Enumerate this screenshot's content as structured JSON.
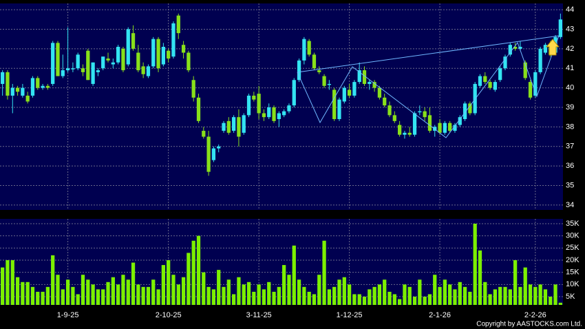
{
  "chart_data": [
    {
      "type": "candlestick",
      "categories": [
        null,
        null,
        null,
        null,
        null,
        null,
        null,
        null,
        null,
        null,
        null,
        null,
        null,
        "1-9-25",
        null,
        null,
        null,
        null,
        null,
        null,
        null,
        null,
        null,
        null,
        null,
        null,
        null,
        null,
        null,
        null,
        null,
        null,
        null,
        "2-10-25",
        null,
        null,
        null,
        null,
        null,
        null,
        null,
        null,
        null,
        null,
        null,
        null,
        null,
        null,
        null,
        null,
        null,
        "3-11-25",
        null,
        null,
        null,
        null,
        null,
        null,
        null,
        null,
        null,
        null,
        null,
        null,
        null,
        null,
        null,
        null,
        null,
        "1-12-25",
        null,
        null,
        null,
        null,
        null,
        null,
        null,
        null,
        null,
        null,
        null,
        null,
        null,
        null,
        null,
        null,
        null,
        "2-1-26",
        null,
        null,
        null,
        null,
        null,
        null,
        null,
        null,
        null,
        null,
        null,
        null,
        null,
        null,
        null,
        null,
        null,
        null,
        "2-2-26",
        null,
        null,
        null,
        null,
        null
      ],
      "open": [
        40.2,
        40.8,
        39.6,
        40.0,
        39.6,
        39.6,
        39.6,
        40.5,
        40.0,
        40.1,
        40.2,
        42.3,
        40.6,
        40.9,
        41.0,
        41.0,
        41.0,
        41.9,
        40.2,
        40.8,
        41.0,
        41.5,
        41.2,
        41.3,
        42.0,
        41.2,
        42.8,
        41.8,
        41.1,
        40.6,
        41.1,
        42.5,
        41.2,
        41.9,
        41.6,
        43.7,
        42.2,
        41.8,
        40.4,
        39.5,
        37.8,
        37.5,
        36.3,
        36.9,
        37.8,
        38.3,
        37.8,
        38.5,
        37.7,
        38.6,
        39.6,
        39.7,
        38.7,
        38.5,
        39.0,
        38.4,
        38.6,
        38.8,
        39.1,
        40.4,
        41.4,
        42.4,
        41.7,
        40.9,
        40.6,
        40.2,
        39.9,
        38.4,
        39.3,
        39.9,
        39.6,
        40.3,
        40.9,
        40.2,
        40.3,
        40.0,
        39.5,
        39.1,
        38.6,
        38.1,
        37.6,
        37.7,
        37.6,
        38.8,
        38.8,
        38.6,
        37.8,
        38.2,
        37.7,
        38.2,
        37.8,
        38.1,
        38.4,
        39.2,
        38.7,
        40.1,
        40.6,
        40.3,
        39.9,
        40.4,
        41.0,
        41.7,
        42.1,
        42.0,
        41.3,
        40.3,
        39.6,
        40.8,
        41.8,
        42.2,
        41.8,
        42.6
      ],
      "high": [
        40.9,
        40.9,
        40.2,
        40.1,
        40.2,
        39.8,
        40.6,
        40.6,
        40.2,
        40.2,
        42.4,
        42.4,
        41.7,
        43.1,
        41.3,
        41.8,
        41.2,
        42.0,
        41.3,
        41.0,
        41.6,
        41.8,
        41.5,
        42.2,
        42.1,
        43.1,
        43.2,
        42.2,
        41.3,
        41.2,
        42.6,
        42.6,
        42.3,
        42.0,
        43.4,
        43.8,
        42.4,
        41.9,
        40.6,
        39.7,
        38.0,
        37.8,
        37.0,
        37.1,
        38.3,
        38.5,
        38.6,
        38.9,
        38.7,
        39.7,
        39.8,
        40.1,
        38.9,
        39.2,
        39.1,
        38.8,
        38.9,
        39.2,
        40.5,
        41.5,
        42.6,
        42.5,
        41.8,
        41.1,
        40.7,
        40.4,
        40.0,
        39.5,
        40.1,
        40.2,
        40.4,
        41.3,
        41.1,
        40.4,
        40.4,
        40.1,
        39.7,
        39.3,
        38.8,
        38.3,
        37.8,
        38.0,
        38.8,
        39.1,
        39.0,
        39.0,
        38.1,
        38.4,
        38.3,
        38.3,
        38.2,
        38.6,
        39.3,
        39.3,
        40.3,
        40.7,
        40.8,
        40.4,
        40.4,
        41.1,
        41.7,
        42.3,
        42.3,
        42.4,
        41.4,
        40.4,
        40.9,
        42.1,
        42.3,
        42.4,
        42.7,
        43.8
      ],
      "low": [
        39.6,
        39.4,
        38.7,
        39.6,
        39.5,
        39.2,
        39.5,
        39.9,
        39.9,
        39.9,
        40.1,
        40.6,
        40.5,
        40.8,
        40.8,
        40.9,
        40.6,
        40.4,
        40.1,
        40.6,
        40.9,
        41.3,
        41.0,
        41.2,
        40.8,
        41.1,
        41.9,
        40.8,
        40.5,
        40.5,
        41.0,
        40.8,
        41.1,
        41.3,
        41.5,
        42.5,
        41.5,
        40.8,
        39.3,
        38.2,
        37.4,
        35.5,
        36.2,
        36.7,
        37.7,
        37.6,
        37.7,
        37.0,
        37.6,
        38.5,
        39.3,
        38.4,
        38.3,
        38.4,
        38.2,
        38.0,
        38.5,
        38.7,
        39.0,
        40.3,
        41.2,
        41.6,
        40.9,
        40.7,
        40.0,
        39.9,
        38.3,
        38.3,
        39.2,
        39.5,
        39.5,
        40.2,
        40.1,
        39.9,
        39.8,
        39.4,
        39.0,
        38.5,
        38.2,
        37.5,
        37.4,
        37.5,
        37.5,
        38.6,
        38.3,
        37.7,
        37.5,
        37.6,
        37.6,
        37.7,
        37.7,
        38.0,
        38.3,
        38.6,
        38.6,
        40.0,
        40.2,
        39.9,
        39.8,
        40.3,
        40.9,
        41.6,
        41.9,
        41.9,
        40.4,
        39.4,
        39.5,
        40.7,
        41.7,
        41.6,
        41.7,
        42.5
      ],
      "close": [
        40.8,
        39.6,
        40.0,
        39.8,
        40.0,
        39.3,
        40.5,
        40.0,
        40.1,
        40.0,
        42.3,
        40.6,
        40.9,
        41.0,
        41.0,
        41.7,
        40.8,
        40.4,
        41.3,
        40.9,
        41.6,
        41.4,
        41.3,
        42.1,
        40.9,
        43.0,
        42.0,
        40.9,
        40.7,
        41.1,
        42.5,
        41.0,
        42.1,
        41.5,
        43.3,
        42.8,
        41.8,
        40.9,
        39.5,
        38.3,
        37.5,
        35.7,
        36.9,
        37.0,
        38.2,
        37.7,
        38.5,
        37.5,
        38.6,
        39.6,
        39.4,
        38.7,
        38.5,
        39.0,
        38.3,
        38.7,
        38.8,
        39.1,
        40.4,
        41.4,
        42.5,
        41.7,
        41.0,
        40.8,
        40.1,
        40.2,
        38.4,
        39.4,
        40.0,
        39.6,
        40.3,
        40.9,
        40.2,
        40.3,
        40.0,
        39.5,
        39.1,
        38.6,
        38.3,
        37.6,
        37.7,
        37.6,
        38.7,
        38.8,
        38.5,
        37.8,
        38.0,
        37.7,
        38.2,
        37.8,
        38.1,
        38.5,
        39.2,
        38.7,
        40.2,
        40.6,
        40.3,
        40.0,
        40.3,
        41.0,
        41.6,
        42.2,
        42.0,
        42.1,
        40.5,
        39.5,
        40.8,
        42.0,
        42.2,
        41.7,
        42.6,
        43.5
      ],
      "up_color": "#33e4f2",
      "down_color": "#88e01a",
      "ylim": [
        33.75,
        44.32
      ],
      "yticks": [
        34,
        35,
        36,
        37,
        38,
        39,
        40,
        41,
        42,
        43,
        44
      ],
      "grid": true
    },
    {
      "type": "bar",
      "values": [
        17000,
        20000,
        20000,
        13000,
        11000,
        11000,
        9000,
        7000,
        7000,
        9000,
        22000,
        14000,
        8000,
        12000,
        9000,
        6000,
        14000,
        12000,
        10000,
        8000,
        8000,
        11000,
        13000,
        10000,
        14000,
        12000,
        19000,
        10000,
        9000,
        9000,
        12000,
        8000,
        18000,
        20000,
        14000,
        10000,
        13000,
        23000,
        28000,
        30000,
        15000,
        9000,
        8000,
        16000,
        9000,
        12000,
        6000,
        13000,
        10000,
        11000,
        7000,
        10000,
        8000,
        11000,
        7000,
        9000,
        18000,
        14000,
        26000,
        12000,
        9000,
        7000,
        6000,
        14000,
        28000,
        8000,
        9000,
        12000,
        13000,
        10000,
        6000,
        6000,
        5000,
        8000,
        9000,
        10000,
        12000,
        7000,
        6000,
        4000,
        10000,
        9000,
        5000,
        12000,
        5000,
        6000,
        14000,
        9000,
        12000,
        10000,
        8000,
        11000,
        9000,
        7000,
        35000,
        24000,
        11000,
        6000,
        8000,
        9000,
        9000,
        8000,
        20000,
        9000,
        17000,
        10000,
        9000,
        10000,
        8000,
        5000,
        10000,
        2500
      ],
      "color": "#7cf000",
      "ylim": [
        1600,
        36980
      ],
      "yticks": [
        {
          "value": 5000,
          "label": "5K"
        },
        {
          "value": 10000,
          "label": "10K"
        },
        {
          "value": 15000,
          "label": "15K"
        },
        {
          "value": 20000,
          "label": "20K"
        },
        {
          "value": 25000,
          "label": "25K"
        },
        {
          "value": 30000,
          "label": "30K"
        },
        {
          "value": 35000,
          "label": "35K"
        }
      ],
      "grid": true
    }
  ],
  "footer": "Copyright by AASTOCKS.com Ltd."
}
